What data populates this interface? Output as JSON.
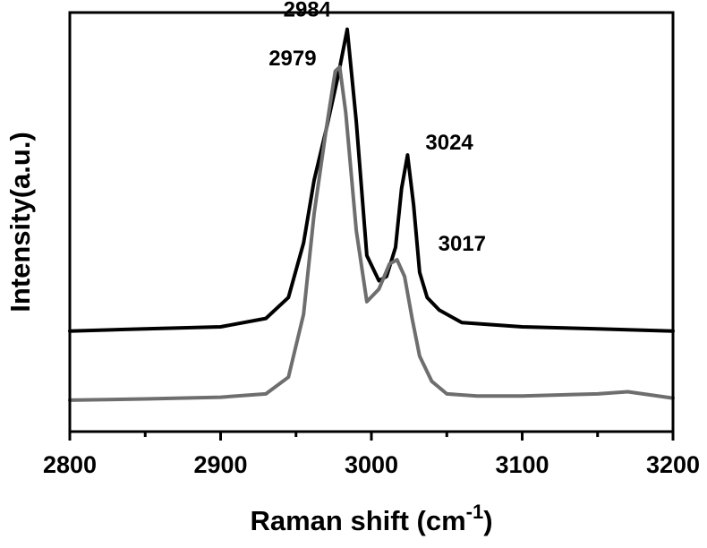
{
  "chart_data": {
    "type": "line",
    "xlabel": "Raman shift",
    "xlabel_unit_base": "cm",
    "xlabel_unit_sup": "-1",
    "ylabel": "Intensity(a.u.)",
    "xlim": [
      2800,
      3200
    ],
    "ylim": [
      0,
      1
    ],
    "x_ticks": [
      2800,
      2900,
      3000,
      3100,
      3200
    ],
    "y_ticks_labeled": false,
    "grid": false,
    "legend": false,
    "series": [
      {
        "color": "#000000",
        "x": [
          2800,
          2850,
          2900,
          2930,
          2945,
          2955,
          2962,
          2970,
          2978,
          2984,
          2990,
          2997,
          3005,
          3010,
          3016,
          3020,
          3024,
          3028,
          3032,
          3037,
          3045,
          3060,
          3100,
          3150,
          3200
        ],
        "y": [
          0.24,
          0.245,
          0.25,
          0.27,
          0.32,
          0.45,
          0.6,
          0.72,
          0.85,
          0.96,
          0.74,
          0.42,
          0.36,
          0.37,
          0.44,
          0.58,
          0.66,
          0.54,
          0.38,
          0.32,
          0.29,
          0.26,
          0.25,
          0.245,
          0.24
        ]
      },
      {
        "color": "#6e6e6e",
        "x": [
          2800,
          2850,
          2900,
          2930,
          2945,
          2955,
          2962,
          2970,
          2976,
          2979,
          2983,
          2990,
          2997,
          3005,
          3012,
          3017,
          3022,
          3027,
          3032,
          3040,
          3050,
          3070,
          3100,
          3150,
          3170,
          3200
        ],
        "y": [
          0.075,
          0.078,
          0.082,
          0.09,
          0.13,
          0.28,
          0.52,
          0.72,
          0.86,
          0.87,
          0.76,
          0.48,
          0.31,
          0.34,
          0.4,
          0.41,
          0.37,
          0.27,
          0.18,
          0.12,
          0.09,
          0.085,
          0.085,
          0.09,
          0.095,
          0.08
        ]
      }
    ],
    "annotations": [
      {
        "text": "2984",
        "x": 2984,
        "y": 0.96
      },
      {
        "text": "2979",
        "x": 2979,
        "y": 0.87
      },
      {
        "text": "3024",
        "x": 3024,
        "y": 0.66
      },
      {
        "text": "3017",
        "x": 3017,
        "y": 0.41
      }
    ]
  }
}
